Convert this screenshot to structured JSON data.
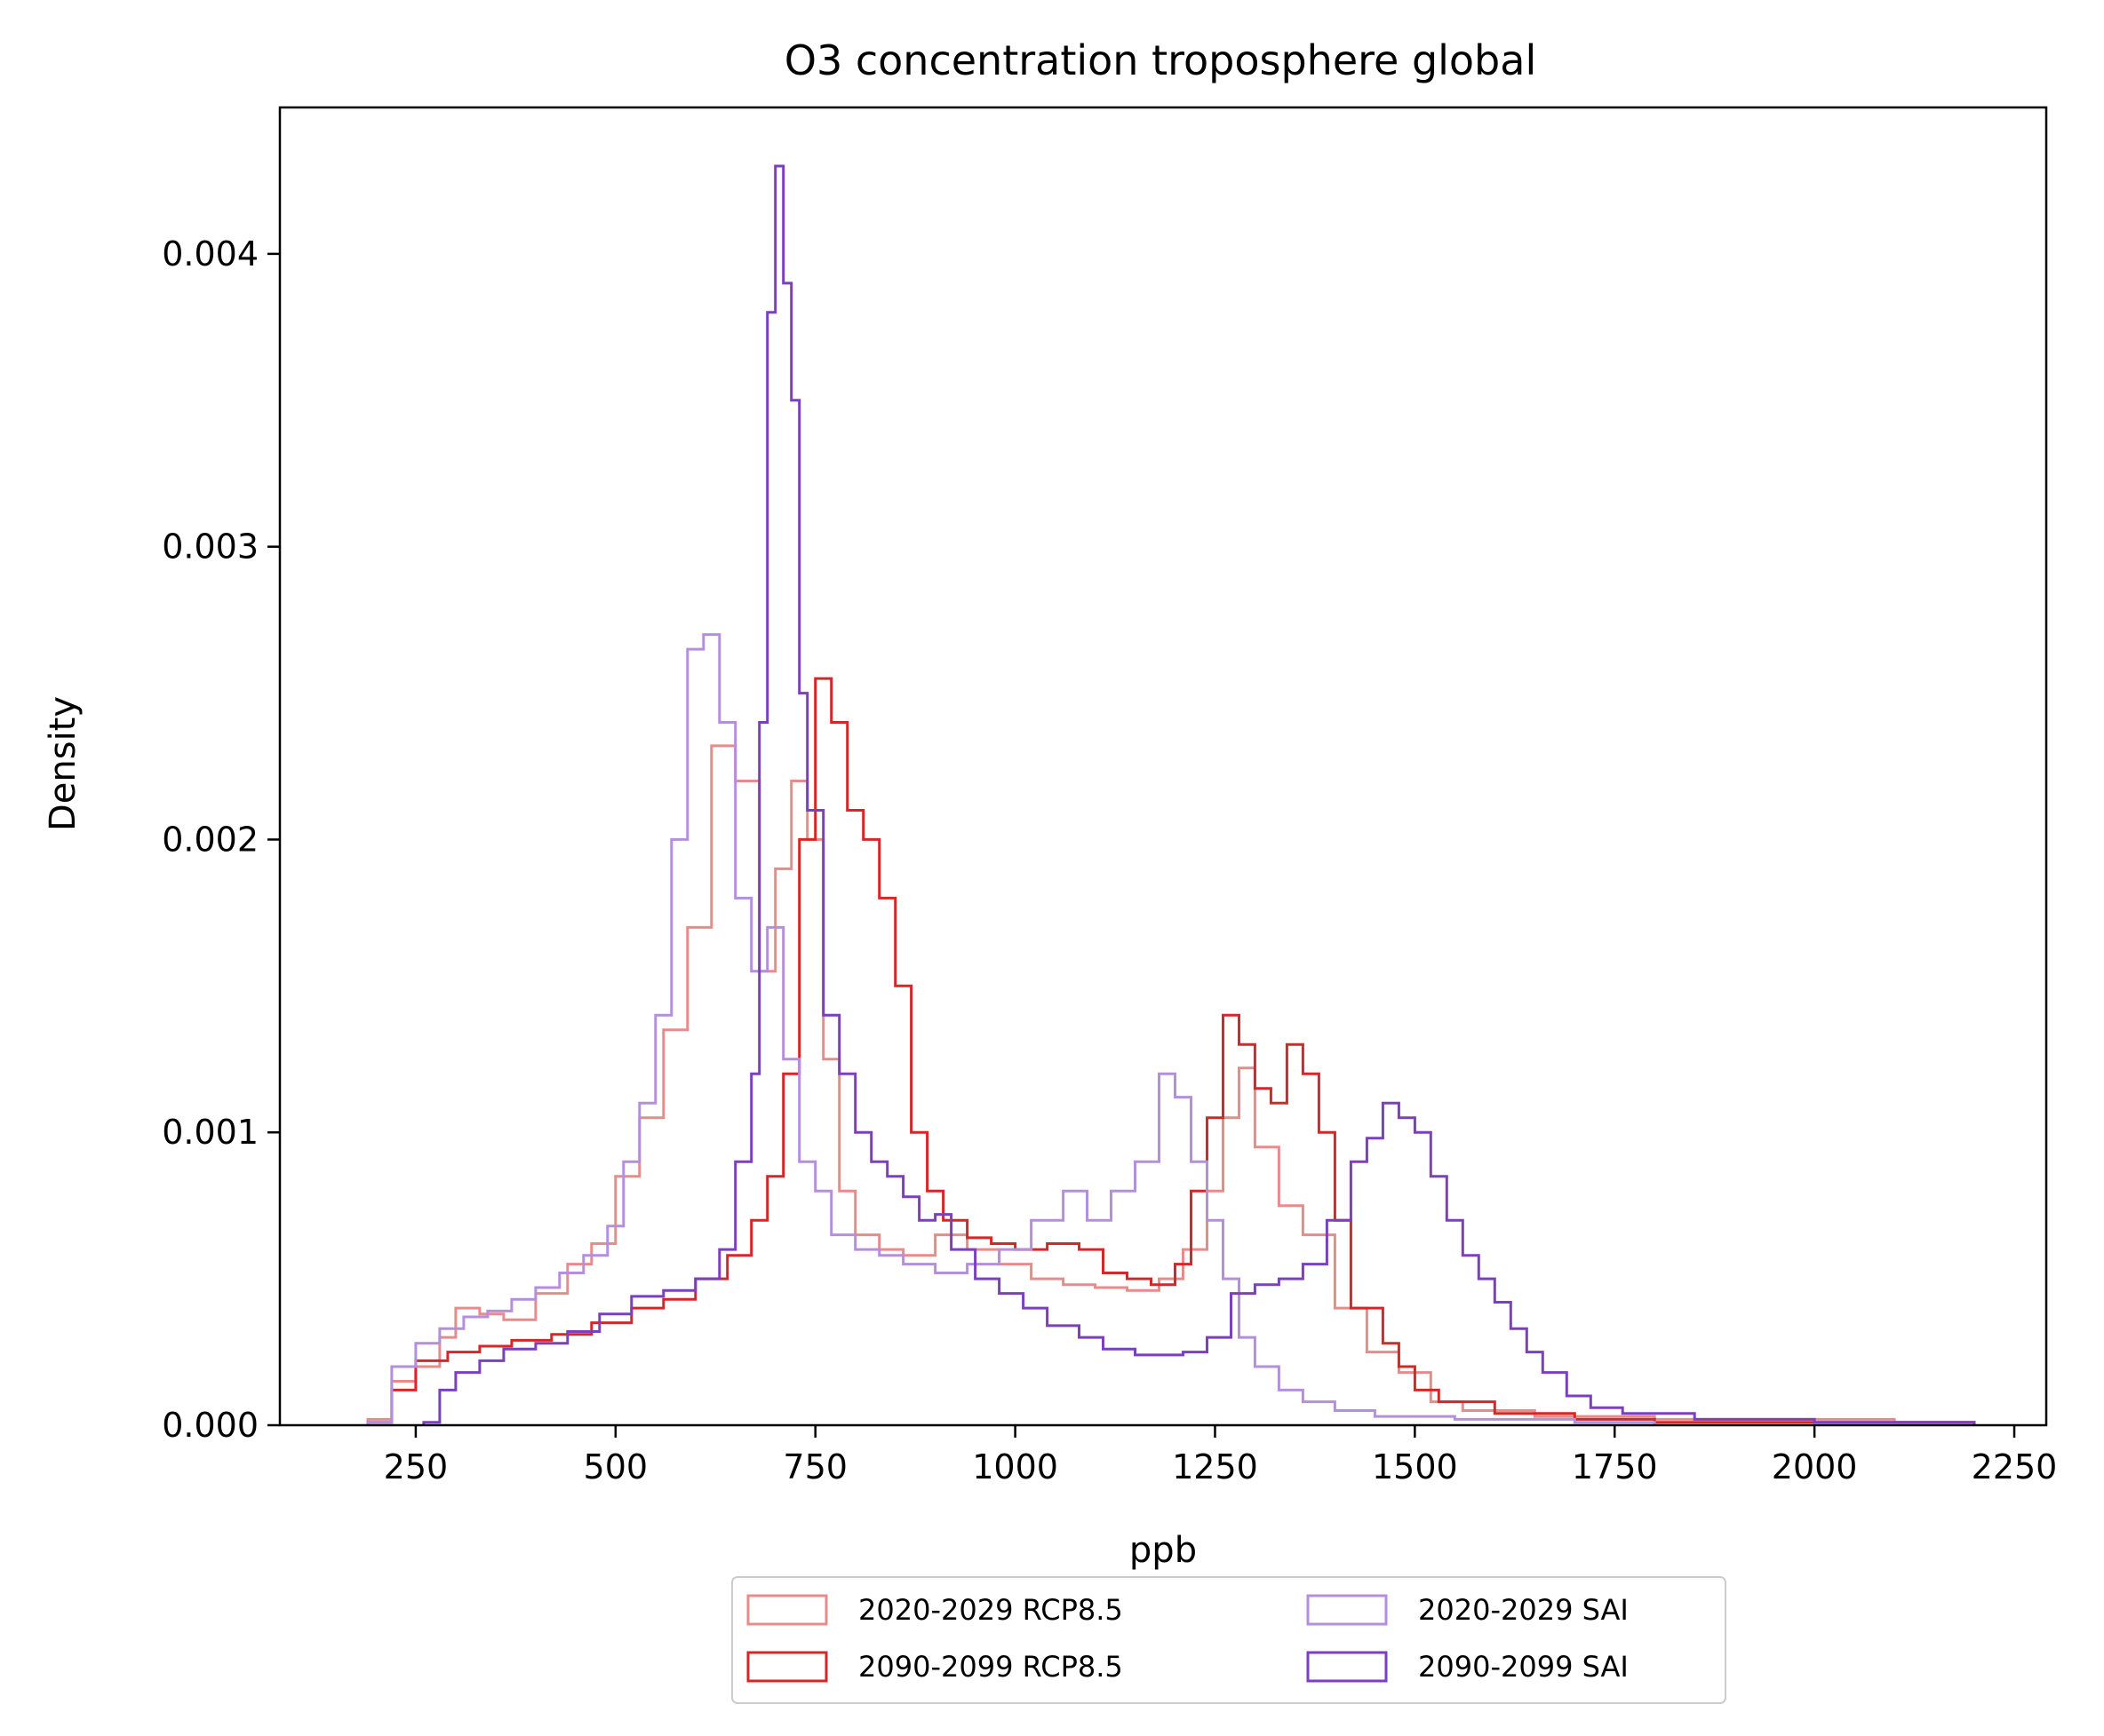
{
  "chart_data": {
    "type": "histogram-step",
    "title": "O3 concentration troposphere global",
    "xlabel": "ppb",
    "ylabel": "Density",
    "xlim": [
      80,
      2290
    ],
    "ylim": [
      0,
      0.0045
    ],
    "x_ticks": [
      250,
      500,
      750,
      1000,
      1250,
      1500,
      1750,
      2000,
      2250
    ],
    "x_tick_labels": [
      "250",
      "500",
      "750",
      "1000",
      "1250",
      "1500",
      "1750",
      "2000",
      "2250"
    ],
    "y_ticks": [
      0,
      0.001,
      0.002,
      0.003,
      0.004
    ],
    "y_tick_labels": [
      "0.000",
      "0.001",
      "0.002",
      "0.003",
      "0.004"
    ],
    "grid": false,
    "legend_position": "below-center",
    "legend_columns": 2,
    "series": [
      {
        "name": "2020-2029 RCP8.5",
        "color": "#e88b8b",
        "stroke_width": 3,
        "points": [
          [
            190,
            2e-05
          ],
          [
            220,
            0.00015
          ],
          [
            250,
            0.0002
          ],
          [
            280,
            0.0003
          ],
          [
            300,
            0.0004
          ],
          [
            330,
            0.00038
          ],
          [
            360,
            0.00036
          ],
          [
            400,
            0.00045
          ],
          [
            440,
            0.00055
          ],
          [
            470,
            0.00062
          ],
          [
            500,
            0.00085
          ],
          [
            530,
            0.00105
          ],
          [
            560,
            0.00135
          ],
          [
            590,
            0.0017
          ],
          [
            620,
            0.00232
          ],
          [
            650,
            0.0022
          ],
          [
            680,
            0.00155
          ],
          [
            700,
            0.0019
          ],
          [
            720,
            0.0022
          ],
          [
            740,
            0.002
          ],
          [
            760,
            0.00125
          ],
          [
            780,
            0.0008
          ],
          [
            800,
            0.00065
          ],
          [
            830,
            0.0006
          ],
          [
            860,
            0.00058
          ],
          [
            900,
            0.00065
          ],
          [
            940,
            0.0006
          ],
          [
            980,
            0.00055
          ],
          [
            1020,
            0.0005
          ],
          [
            1060,
            0.00048
          ],
          [
            1100,
            0.00047
          ],
          [
            1140,
            0.00046
          ],
          [
            1180,
            0.0005
          ],
          [
            1210,
            0.0006
          ],
          [
            1240,
            0.0008
          ],
          [
            1260,
            0.00105
          ],
          [
            1280,
            0.00122
          ],
          [
            1300,
            0.00095
          ],
          [
            1330,
            0.00075
          ],
          [
            1360,
            0.00065
          ],
          [
            1400,
            0.0004
          ],
          [
            1440,
            0.00025
          ],
          [
            1480,
            0.00018
          ],
          [
            1520,
            8e-05
          ],
          [
            1560,
            5e-05
          ],
          [
            1650,
            3e-05
          ],
          [
            1800,
            2e-05
          ],
          [
            2100,
            1e-05
          ],
          [
            2200,
            0
          ]
        ]
      },
      {
        "name": "2090-2099 RCP8.5",
        "color": "#d62728",
        "stroke_width": 3,
        "points": [
          [
            190,
            1e-05
          ],
          [
            220,
            0.00012
          ],
          [
            250,
            0.00022
          ],
          [
            290,
            0.00025
          ],
          [
            330,
            0.00027
          ],
          [
            370,
            0.00029
          ],
          [
            420,
            0.00031
          ],
          [
            470,
            0.00035
          ],
          [
            520,
            0.0004
          ],
          [
            560,
            0.00043
          ],
          [
            600,
            0.0005
          ],
          [
            640,
            0.00058
          ],
          [
            670,
            0.0007
          ],
          [
            690,
            0.00085
          ],
          [
            710,
            0.0012
          ],
          [
            730,
            0.002
          ],
          [
            750,
            0.00255
          ],
          [
            770,
            0.0024
          ],
          [
            790,
            0.0021
          ],
          [
            810,
            0.002
          ],
          [
            830,
            0.0018
          ],
          [
            850,
            0.0015
          ],
          [
            870,
            0.001
          ],
          [
            890,
            0.0008
          ],
          [
            910,
            0.0007
          ],
          [
            940,
            0.00064
          ],
          [
            970,
            0.00062
          ],
          [
            1000,
            0.0006
          ],
          [
            1040,
            0.00062
          ],
          [
            1080,
            0.0006
          ],
          [
            1110,
            0.00052
          ],
          [
            1140,
            0.0005
          ],
          [
            1170,
            0.00048
          ],
          [
            1200,
            0.00055
          ],
          [
            1220,
            0.0008
          ],
          [
            1240,
            0.00105
          ],
          [
            1260,
            0.0014
          ],
          [
            1280,
            0.0013
          ],
          [
            1300,
            0.00115
          ],
          [
            1320,
            0.0011
          ],
          [
            1340,
            0.0013
          ],
          [
            1360,
            0.0012
          ],
          [
            1380,
            0.001
          ],
          [
            1400,
            0.0007
          ],
          [
            1420,
            0.0004
          ],
          [
            1440,
            0.0004
          ],
          [
            1460,
            0.00028
          ],
          [
            1480,
            0.0002
          ],
          [
            1500,
            0.00012
          ],
          [
            1530,
            8e-05
          ],
          [
            1600,
            4e-05
          ],
          [
            1700,
            2e-05
          ],
          [
            1800,
            1e-05
          ],
          [
            2200,
            0
          ]
        ]
      },
      {
        "name": "2020-2029 SAI",
        "color": "#b48fdc",
        "stroke_width": 3,
        "points": [
          [
            190,
            1e-05
          ],
          [
            220,
            0.0002
          ],
          [
            250,
            0.00028
          ],
          [
            280,
            0.00033
          ],
          [
            310,
            0.00037
          ],
          [
            340,
            0.00039
          ],
          [
            370,
            0.00043
          ],
          [
            400,
            0.00047
          ],
          [
            430,
            0.00052
          ],
          [
            460,
            0.00058
          ],
          [
            490,
            0.00068
          ],
          [
            510,
            0.0009
          ],
          [
            530,
            0.0011
          ],
          [
            550,
            0.0014
          ],
          [
            570,
            0.002
          ],
          [
            590,
            0.00265
          ],
          [
            610,
            0.0027
          ],
          [
            630,
            0.0024
          ],
          [
            650,
            0.0018
          ],
          [
            670,
            0.00155
          ],
          [
            690,
            0.0017
          ],
          [
            710,
            0.00125
          ],
          [
            730,
            0.0009
          ],
          [
            750,
            0.0008
          ],
          [
            770,
            0.00065
          ],
          [
            800,
            0.0006
          ],
          [
            830,
            0.00058
          ],
          [
            860,
            0.00055
          ],
          [
            900,
            0.00052
          ],
          [
            940,
            0.00055
          ],
          [
            980,
            0.0006
          ],
          [
            1020,
            0.0007
          ],
          [
            1060,
            0.0008
          ],
          [
            1090,
            0.0007
          ],
          [
            1120,
            0.0008
          ],
          [
            1150,
            0.0009
          ],
          [
            1180,
            0.0012
          ],
          [
            1200,
            0.00112
          ],
          [
            1220,
            0.0009
          ],
          [
            1240,
            0.0007
          ],
          [
            1260,
            0.0005
          ],
          [
            1280,
            0.0003
          ],
          [
            1300,
            0.0002
          ],
          [
            1330,
            0.00012
          ],
          [
            1360,
            8e-05
          ],
          [
            1400,
            5e-05
          ],
          [
            1450,
            3e-05
          ],
          [
            1550,
            2e-05
          ],
          [
            1700,
            1e-05
          ],
          [
            1800,
            0
          ]
        ]
      },
      {
        "name": "2090-2099 SAI",
        "color": "#7b3fbf",
        "stroke_width": 3,
        "points": [
          [
            260,
            1e-05
          ],
          [
            280,
            0.00012
          ],
          [
            300,
            0.00018
          ],
          [
            330,
            0.00022
          ],
          [
            360,
            0.00026
          ],
          [
            400,
            0.00028
          ],
          [
            440,
            0.00032
          ],
          [
            480,
            0.00038
          ],
          [
            520,
            0.00044
          ],
          [
            560,
            0.00046
          ],
          [
            600,
            0.0005
          ],
          [
            630,
            0.0006
          ],
          [
            650,
            0.0009
          ],
          [
            670,
            0.0012
          ],
          [
            680,
            0.0024
          ],
          [
            690,
            0.0038
          ],
          [
            700,
            0.0043
          ],
          [
            710,
            0.0039
          ],
          [
            720,
            0.0035
          ],
          [
            730,
            0.0025
          ],
          [
            740,
            0.0021
          ],
          [
            760,
            0.0014
          ],
          [
            780,
            0.0012
          ],
          [
            800,
            0.001
          ],
          [
            820,
            0.0009
          ],
          [
            840,
            0.00085
          ],
          [
            860,
            0.00078
          ],
          [
            880,
            0.0007
          ],
          [
            900,
            0.00072
          ],
          [
            920,
            0.0006
          ],
          [
            950,
            0.0005
          ],
          [
            980,
            0.00045
          ],
          [
            1010,
            0.0004
          ],
          [
            1040,
            0.00034
          ],
          [
            1080,
            0.0003
          ],
          [
            1110,
            0.00026
          ],
          [
            1150,
            0.00024
          ],
          [
            1180,
            0.00024
          ],
          [
            1210,
            0.00025
          ],
          [
            1240,
            0.0003
          ],
          [
            1270,
            0.00045
          ],
          [
            1300,
            0.00048
          ],
          [
            1330,
            0.0005
          ],
          [
            1360,
            0.00055
          ],
          [
            1390,
            0.0007
          ],
          [
            1420,
            0.0009
          ],
          [
            1440,
            0.00098
          ],
          [
            1460,
            0.0011
          ],
          [
            1480,
            0.00105
          ],
          [
            1500,
            0.001
          ],
          [
            1520,
            0.00085
          ],
          [
            1540,
            0.0007
          ],
          [
            1560,
            0.00058
          ],
          [
            1580,
            0.0005
          ],
          [
            1600,
            0.00042
          ],
          [
            1620,
            0.00033
          ],
          [
            1640,
            0.00025
          ],
          [
            1660,
            0.00018
          ],
          [
            1690,
            0.0001
          ],
          [
            1720,
            6e-05
          ],
          [
            1760,
            4e-05
          ],
          [
            1850,
            2e-05
          ],
          [
            2000,
            1e-05
          ],
          [
            2200,
            0
          ]
        ]
      }
    ]
  }
}
